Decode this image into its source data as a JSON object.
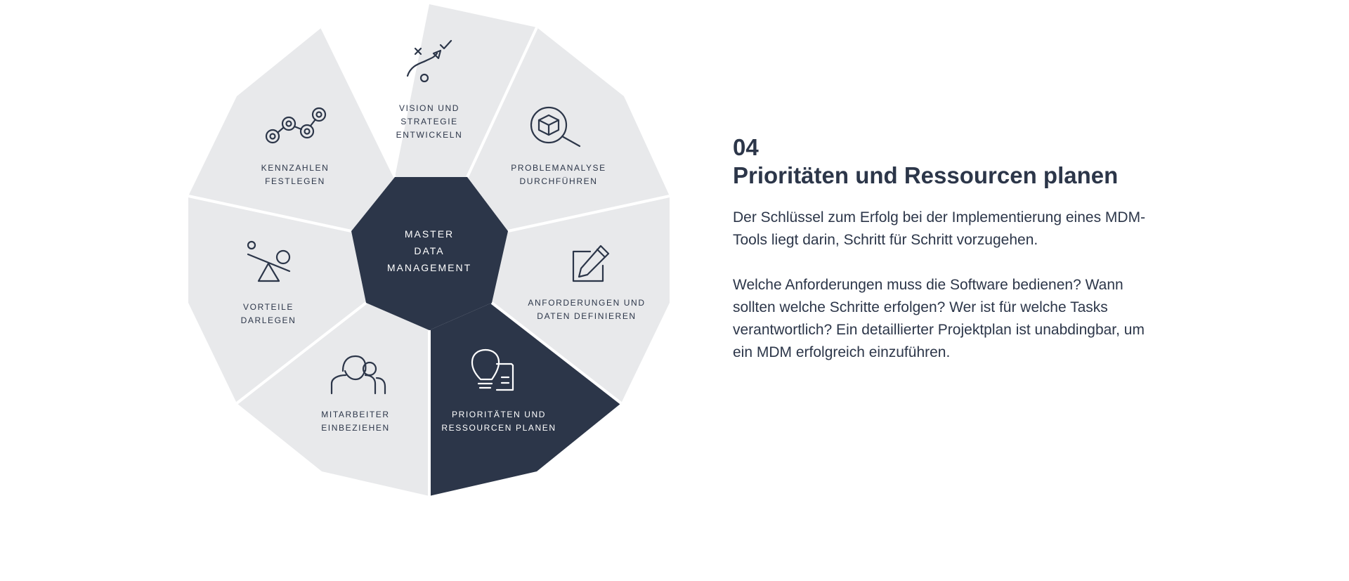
{
  "diagram": {
    "center": {
      "lines": [
        "MASTER",
        "DATA",
        "MANAGEMENT"
      ]
    },
    "segments": [
      {
        "id": "vision",
        "lines": [
          "VISION UND",
          "STRATEGIE",
          "ENTWICKELN"
        ],
        "icon": "strategy-play-icon",
        "active": false
      },
      {
        "id": "problem",
        "lines": [
          "PROBLEMANALYSE",
          "DURCHFÜHREN"
        ],
        "icon": "magnifier-cube-icon",
        "active": false
      },
      {
        "id": "anforderungen",
        "lines": [
          "ANFORDERUNGEN UND",
          "DATEN DEFINIEREN"
        ],
        "icon": "pencil-square-icon",
        "active": false
      },
      {
        "id": "prioritaeten",
        "lines": [
          "PRIORITÄTEN UND",
          "RESSOURCEN PLANEN"
        ],
        "icon": "lightbulb-document-icon",
        "active": true
      },
      {
        "id": "mitarbeiter",
        "lines": [
          "MITARBEITER",
          "EINBEZIEHEN"
        ],
        "icon": "people-icon",
        "active": false
      },
      {
        "id": "vorteile",
        "lines": [
          "VORTEILE",
          "DARLEGEN"
        ],
        "icon": "seesaw-icon",
        "active": false
      },
      {
        "id": "kennzahlen",
        "lines": [
          "KENNZAHLEN",
          "FESTLEGEN"
        ],
        "icon": "line-graph-icon",
        "active": false
      }
    ]
  },
  "content": {
    "step_number": "04",
    "title": "Prioritäten und Ressourcen planen",
    "paragraphs": [
      "Der Schlüssel zum Erfolg bei der Implementierung eines MDM-Tools liegt darin, Schritt für Schritt vorzugehen.",
      "Welche Anforderungen muss die Software bedienen? Wann sollten welche Schritte erfolgen? Wer ist für welche Tasks verantwortlich? Ein detaillierter Projektplan ist unabdingbar, um ein MDM erfolgreich einzuführen."
    ]
  },
  "colors": {
    "dark": "#2c3649",
    "light": "#e8e9eb",
    "divider": "#ffffff"
  }
}
